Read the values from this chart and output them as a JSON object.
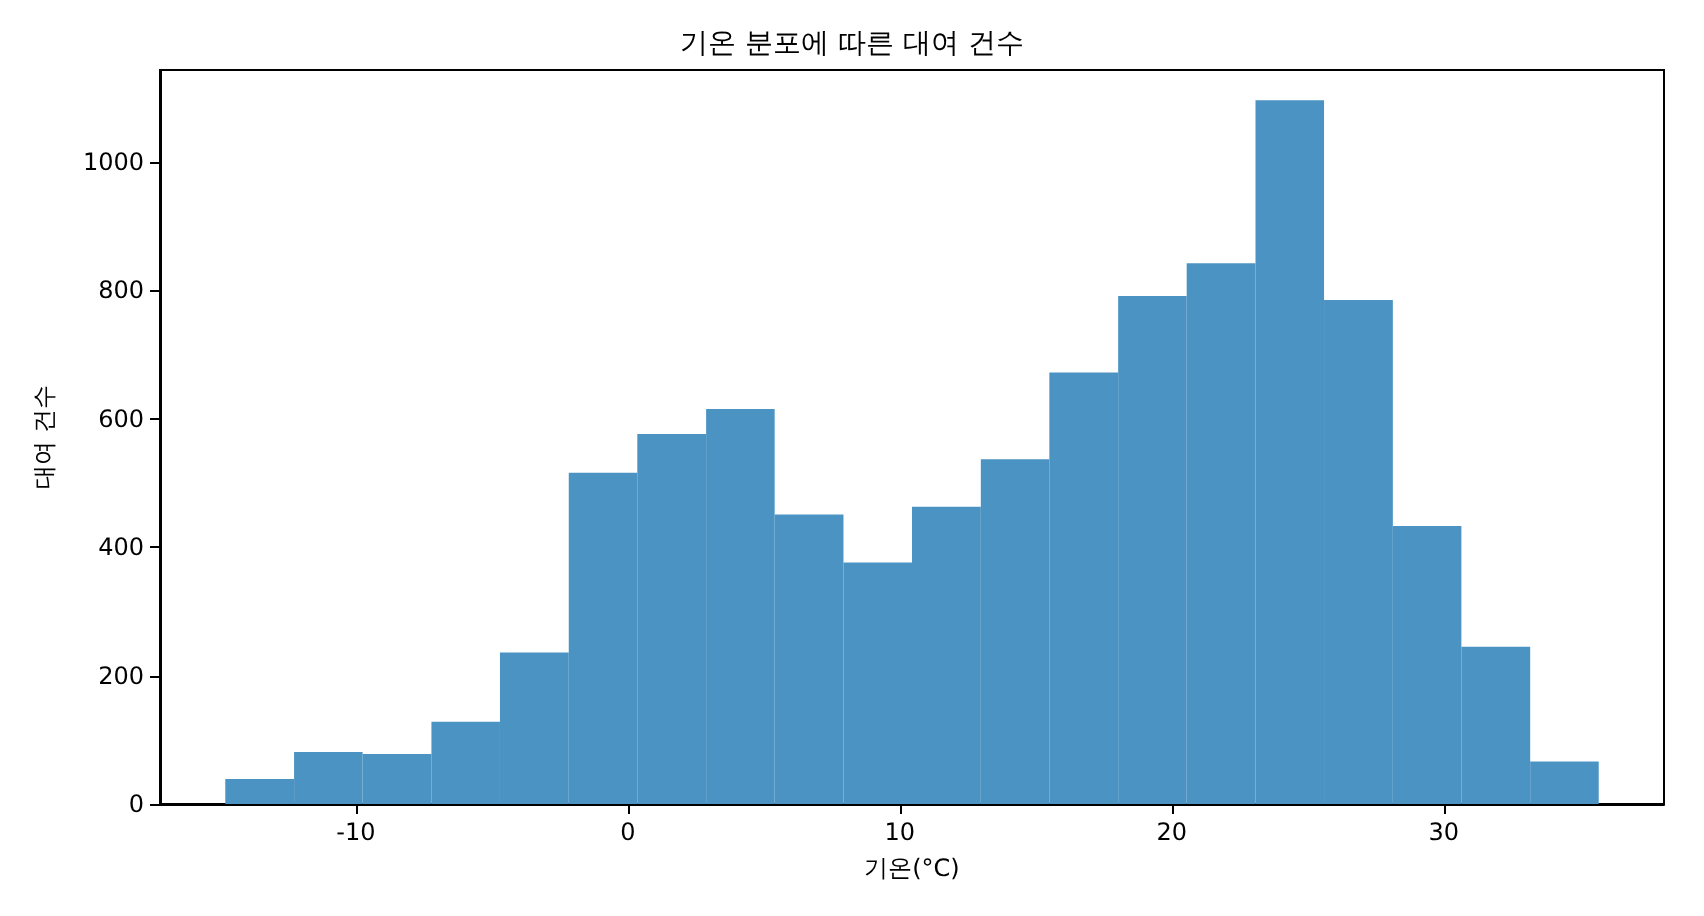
{
  "chart_data": {
    "type": "histogram",
    "title": "기온 분포에 따른 대여 건수",
    "xlabel": "기온(°C)",
    "ylabel": "대여 건수",
    "bins": [
      -14.8,
      -12.27,
      -9.75,
      -7.22,
      -4.7,
      -2.17,
      0.35,
      2.88,
      5.4,
      7.93,
      10.45,
      12.98,
      15.5,
      18.03,
      20.55,
      23.08,
      25.6,
      28.13,
      30.65,
      33.18,
      35.7
    ],
    "values": [
      39,
      81,
      78,
      128,
      236,
      516,
      576,
      615,
      451,
      376,
      463,
      537,
      672,
      791,
      842,
      1096,
      785,
      433,
      245,
      66
    ],
    "color": "#4b93c3",
    "xlim": [
      -17.2,
      38.1
    ],
    "ylim": [
      0,
      1143
    ],
    "xticks": [
      -10,
      0,
      10,
      20,
      30
    ],
    "yticks": [
      0,
      200,
      400,
      600,
      800,
      1000
    ],
    "grid": false
  }
}
